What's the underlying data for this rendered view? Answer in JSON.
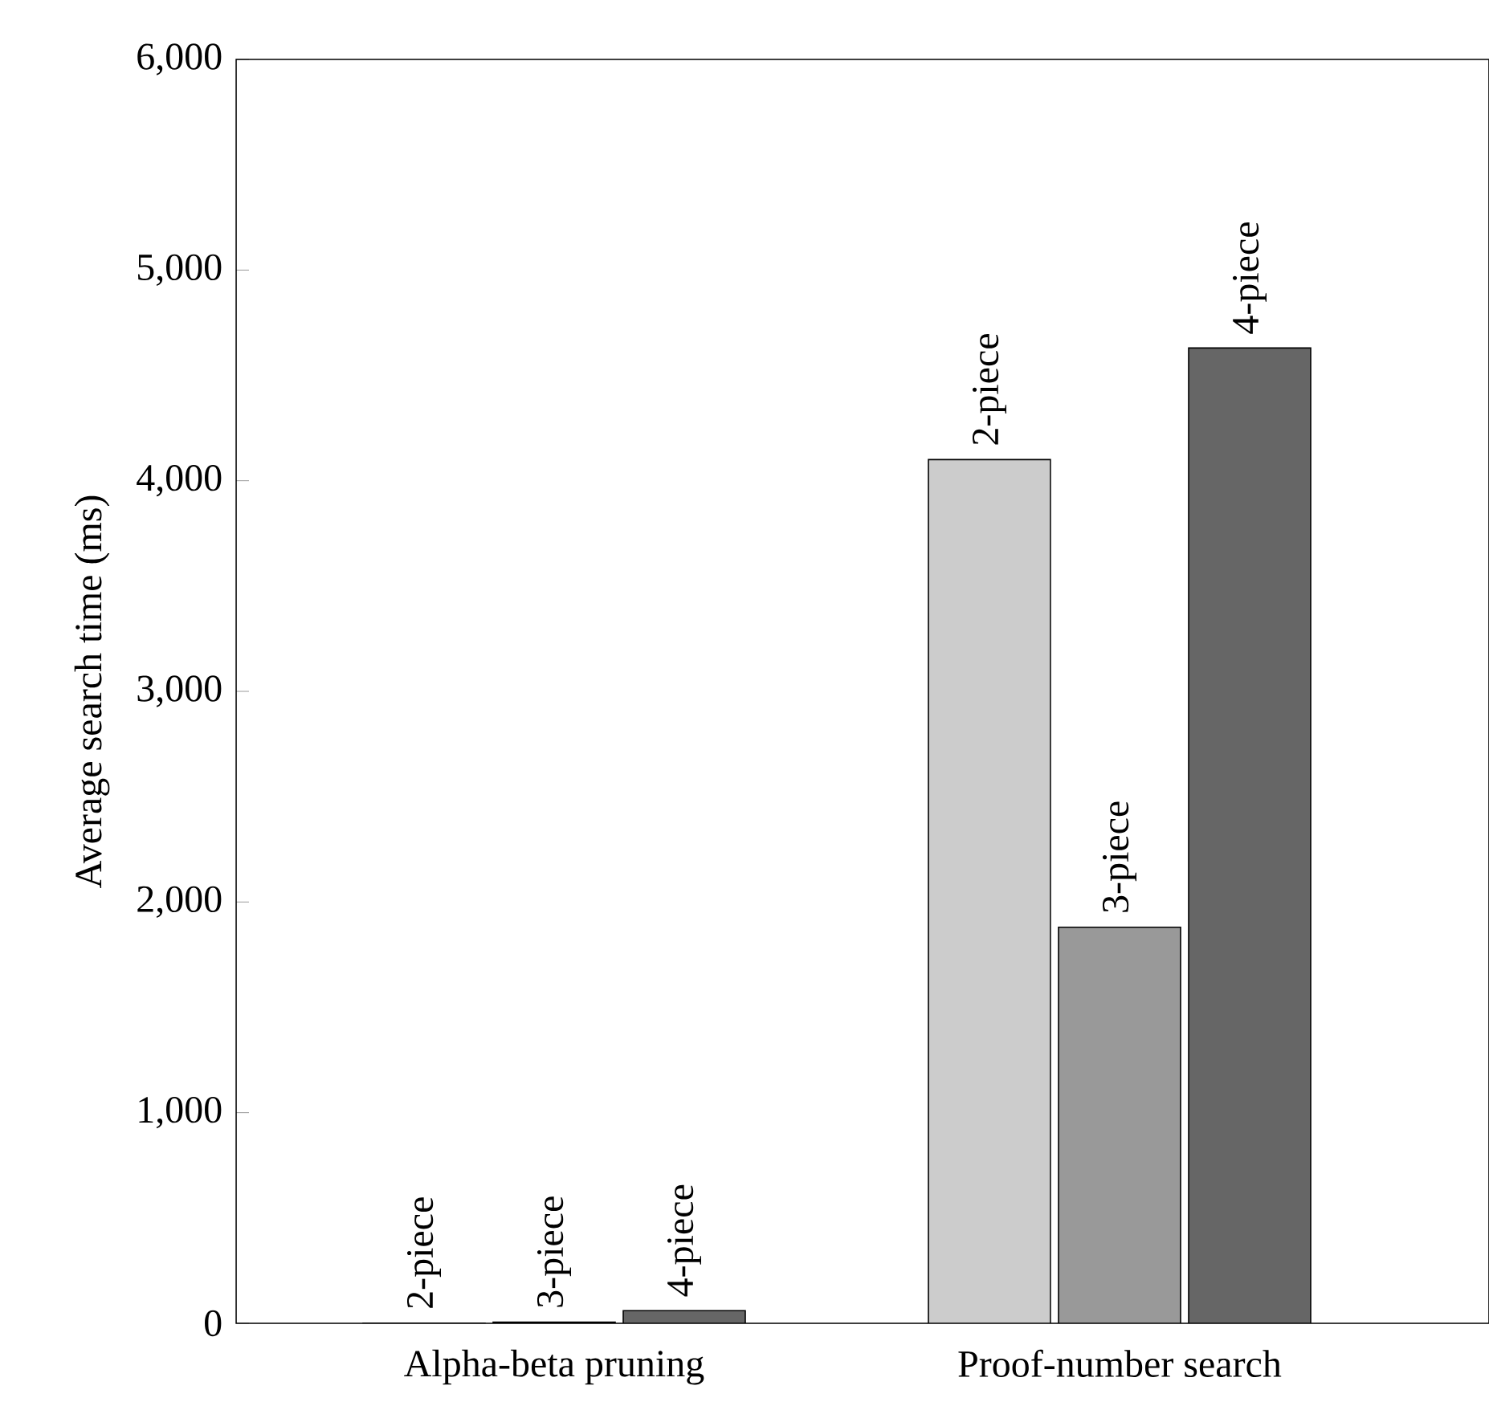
{
  "chart_data": {
    "type": "bar",
    "ylabel": "Average search time (ms)",
    "categories": [
      "Alpha-beta pruning",
      "Proof-number search"
    ],
    "series": [
      {
        "name": "2-piece",
        "color": "#cccccc",
        "values": [
          1,
          4100
        ]
      },
      {
        "name": "3-piece",
        "color": "#999999",
        "values": [
          5,
          1880
        ]
      },
      {
        "name": "4-piece",
        "color": "#666666",
        "values": [
          60,
          4630
        ]
      }
    ],
    "ylim": [
      0,
      6000
    ],
    "yticks": [
      {
        "value": 0,
        "label": "0"
      },
      {
        "value": 1000,
        "label": "1,000"
      },
      {
        "value": 2000,
        "label": "2,000"
      },
      {
        "value": 3000,
        "label": "3,000"
      },
      {
        "value": 4000,
        "label": "4,000"
      },
      {
        "value": 5000,
        "label": "5,000"
      },
      {
        "value": 6000,
        "label": "6,000"
      }
    ],
    "grid": false
  }
}
